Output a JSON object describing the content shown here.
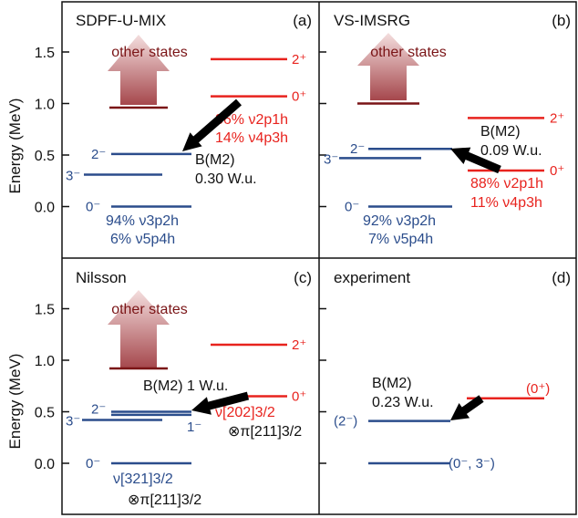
{
  "axes": {
    "ylabel": "Energy (MeV)",
    "ticks": [
      "0.0",
      "0.5",
      "1.0",
      "1.5"
    ],
    "tick_values": [
      0.0,
      0.5,
      1.0,
      1.5
    ]
  },
  "colors": {
    "positive_parity": "#e8231e",
    "negative_parity": "#2b4d8c",
    "other_states": "#7a1416",
    "frame": "#111111"
  },
  "arrow_icon": "block-arrow-up",
  "panels": [
    {
      "title": "SDPF-U-MIX",
      "tag": "(a)",
      "other_states": "other states",
      "bm2_title": "B(M2)",
      "bm2_value": "0.30 W.u.",
      "levels": {
        "s2p": {
          "label": "2⁺",
          "energy": 1.43
        },
        "s0p": {
          "label": "0⁺",
          "energy": 1.07
        },
        "s2m": {
          "label": "2⁻",
          "energy": 0.51
        },
        "s3m": {
          "label": "3⁻",
          "energy": 0.31
        },
        "s0m": {
          "label": "0⁻",
          "energy": 0.0
        }
      },
      "other_energy": 0.96,
      "comp_pos": [
        "86% ν2p1h",
        "14% ν4p3h"
      ],
      "comp_neg": [
        "94% ν3p2h",
        "6% ν5p4h"
      ]
    },
    {
      "title": "VS-IMSRG",
      "tag": "(b)",
      "other_states": "other states",
      "bm2_title": "B(M2)",
      "bm2_value": "0.09 W.u.",
      "levels": {
        "s2p": {
          "label": "2⁺",
          "energy": 0.86
        },
        "s0p": {
          "label": "0⁺",
          "energy": 0.35
        },
        "s2m": {
          "label": "2⁻",
          "energy": 0.56
        },
        "s3m": {
          "label": "3⁻",
          "energy": 0.47
        },
        "s0m": {
          "label": "0⁻",
          "energy": 0.0
        }
      },
      "other_energy": 1.0,
      "comp_pos": [
        "88% ν2p1h",
        "11% ν4p3h"
      ],
      "comp_neg": [
        "92% ν3p2h",
        "7% ν5p4h"
      ]
    },
    {
      "title": "Nilsson",
      "tag": "(c)",
      "other_states": "other states",
      "bm2_title": "B(M2)",
      "bm2_value": "1 W.u.",
      "levels": {
        "s2p": {
          "label": "2⁺",
          "energy": 1.15
        },
        "s0p": {
          "label": "0⁺",
          "energy": 0.65
        },
        "s2m": {
          "label": "2⁻",
          "energy": 0.5
        },
        "s3m": {
          "label": "3⁻",
          "energy": 0.42
        },
        "s1m": {
          "label": "1⁻",
          "energy": 0.47
        },
        "s0m": {
          "label": "0⁻",
          "energy": 0.0
        }
      },
      "other_energy": 0.92,
      "comp_pos": [
        "ν[202]3/2",
        "⊗π[211]3/2"
      ],
      "comp_neg": [
        "ν[321]3/2",
        "⊗π[211]3/2"
      ]
    },
    {
      "title": "experiment",
      "tag": "(d)",
      "bm2_title": "B(M2)",
      "bm2_value": "0.23 W.u.",
      "levels": {
        "s0p": {
          "label": "(0⁺)",
          "energy": 0.63
        },
        "s2m": {
          "label": "(2⁻)",
          "energy": 0.41
        },
        "s0m": {
          "label": "(0⁻, 3⁻)",
          "energy": 0.0
        }
      }
    }
  ]
}
